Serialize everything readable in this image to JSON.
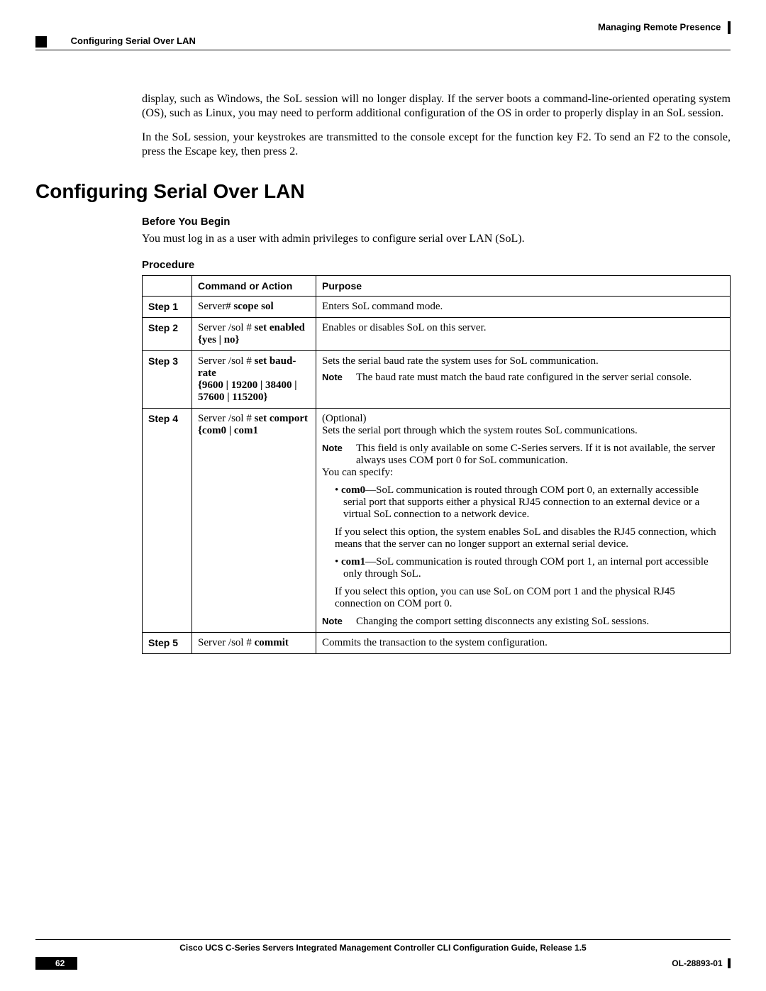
{
  "header": {
    "chapter": "Managing Remote Presence",
    "section_running": "Configuring Serial Over LAN"
  },
  "intro": {
    "p1": "display, such as Windows, the SoL session will no longer display. If the server boots a command-line-oriented operating system (OS), such as Linux, you may need to perform additional configuration of the OS in order to properly display in an SoL session.",
    "p2": "In the SoL session, your keystrokes are transmitted to the console except for the function key F2. To send an F2 to the console, press the Escape key, then press 2."
  },
  "h1": "Configuring Serial Over LAN",
  "before": {
    "heading": "Before You Begin",
    "text": "You must log in as a user with admin privileges to configure serial over LAN (SoL)."
  },
  "procedure": {
    "heading": "Procedure",
    "columns": {
      "c1": "",
      "c2": "Command or Action",
      "c3": "Purpose"
    },
    "steps": {
      "s1": {
        "label": "Step 1",
        "cmd_pre": "Server# ",
        "cmd_bold": "scope sol",
        "purpose": "Enters SoL command mode."
      },
      "s2": {
        "label": "Step 2",
        "cmd_pre": "Server /sol # ",
        "cmd_bold": "set enabled",
        "cmd_arg": "{yes | no}",
        "purpose": "Enables or disables SoL on this server."
      },
      "s3": {
        "label": "Step 3",
        "cmd_pre": "Server /sol # ",
        "cmd_bold": "set baud-rate",
        "cmd_arg": "{9600 | 19200 | 38400 | 57600 | 115200}",
        "purpose": "Sets the serial baud rate the system uses for SoL communication.",
        "note_label": "Note",
        "note": "The baud rate must match the baud rate configured in the server serial console."
      },
      "s4": {
        "label": "Step 4",
        "cmd_pre": "Server /sol # ",
        "cmd_bold": "set comport",
        "cmd_arg": "{com0 | com1",
        "optional": "(Optional)",
        "p1": "Sets the serial port through which the system routes SoL communications.",
        "note1_label": "Note",
        "note1": "This field is only available on some C-Series servers. If it is not available, the server always uses COM port 0 for SoL communication.",
        "specify": "You can specify:",
        "com0_bold": "com0",
        "com0_rest": "—SoL communication is routed through COM port 0, an externally accessible serial port that supports either a physical RJ45 connection to an external device or a virtual SoL connection to a network device.",
        "com0_p2": "If you select this option, the system enables SoL and disables the RJ45 connection, which means that the server can no longer support an external serial device.",
        "com1_bold": "com1",
        "com1_rest": "—SoL communication is routed through COM port 1, an internal port accessible only through SoL.",
        "com1_p2": "If you select this option, you can use SoL on COM port 1 and the physical RJ45 connection on COM port 0.",
        "note2_label": "Note",
        "note2": "Changing the comport setting disconnects any existing SoL sessions."
      },
      "s5": {
        "label": "Step 5",
        "cmd_pre": "Server /sol # ",
        "cmd_bold": "commit",
        "purpose": "Commits the transaction to the system configuration."
      }
    }
  },
  "footer": {
    "title": "Cisco UCS C-Series Servers Integrated Management Controller CLI Configuration Guide, Release 1.5",
    "page": "62",
    "doc_id": "OL-28893-01"
  }
}
